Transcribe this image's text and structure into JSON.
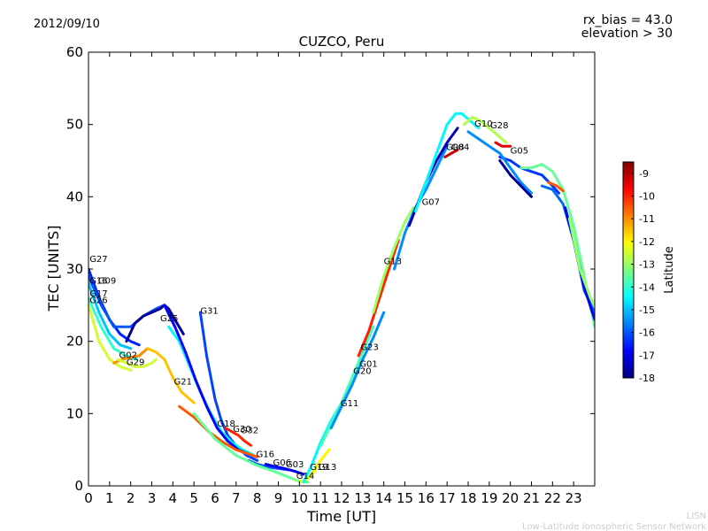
{
  "date_label": "2012/09/10",
  "rx_bias_label": "rx_bias = 43.0",
  "elevation_label": "elevation > 30",
  "footer_line1": "LISN",
  "footer_line2": "Low-Latitude Ionospheric Sensor Network",
  "chart_data": {
    "type": "line",
    "title": "CUZCO, Peru",
    "xlabel": "Time [UT]",
    "ylabel": "TEC [UNITS]",
    "xlim": [
      0,
      24
    ],
    "ylim": [
      0,
      60
    ],
    "xticks": [
      "0",
      "1",
      "2",
      "3",
      "4",
      "5",
      "6",
      "7",
      "8",
      "9",
      "10",
      "11",
      "12",
      "13",
      "14",
      "15",
      "16",
      "17",
      "18",
      "19",
      "20",
      "21",
      "22",
      "23"
    ],
    "yticks": [
      "0",
      "10",
      "20",
      "30",
      "40",
      "50",
      "60"
    ],
    "colorbar": {
      "label": "Latitude",
      "range": [
        -18,
        -8.5
      ],
      "ticks": [
        "-9",
        "-10",
        "-11",
        "-12",
        "-13",
        "-14",
        "-15",
        "-16",
        "-17",
        "-18"
      ],
      "colormap": [
        "#00007f",
        "#0000ff",
        "#007fff",
        "#00ffff",
        "#7fff7f",
        "#ffff00",
        "#ff7f00",
        "#ff0000",
        "#7f0000"
      ]
    },
    "series": [
      {
        "name": "G27",
        "lat": -16.5,
        "label_x": 0.05,
        "label_y": 31.0,
        "x": [
          0.0,
          0.5,
          1.0,
          1.5,
          2.0,
          2.4
        ],
        "y": [
          30.0,
          26.0,
          23.0,
          21.0,
          20.0,
          19.5
        ]
      },
      {
        "name": "G15",
        "lat": -15.0,
        "label_x": 0.05,
        "label_y": 28.0,
        "x": [
          0.0,
          0.5,
          1.0,
          1.5,
          2.0
        ],
        "y": [
          28.0,
          24.0,
          21.0,
          19.5,
          19.0
        ]
      },
      {
        "name": "G09",
        "lat": -16.0,
        "label_x": 0.45,
        "label_y": 28.0,
        "x": [
          0.0,
          0.6,
          1.2,
          2.0,
          2.6,
          3.2,
          3.6,
          4.0
        ],
        "y": [
          29.0,
          25.0,
          22.0,
          22.0,
          23.5,
          24.5,
          25.0,
          23.0
        ]
      },
      {
        "name": "G17",
        "lat": -14.0,
        "label_x": 0.05,
        "label_y": 26.2,
        "x": [
          0.0,
          0.6,
          1.2,
          1.8,
          2.3
        ],
        "y": [
          26.0,
          22.0,
          19.0,
          18.0,
          17.5
        ]
      },
      {
        "name": "G26",
        "lat": -12.5,
        "label_x": 0.05,
        "label_y": 25.3,
        "x": [
          0.0,
          0.5,
          1.0,
          1.5,
          2.0
        ],
        "y": [
          25.0,
          20.0,
          17.5,
          16.5,
          16.0
        ]
      },
      {
        "name": "G02",
        "lat": -11.0,
        "label_x": 1.45,
        "label_y": 17.7,
        "x": [
          1.2,
          1.6,
          2.0,
          2.4,
          2.8
        ],
        "y": [
          17.0,
          17.5,
          17.8,
          18.0,
          19.0
        ]
      },
      {
        "name": "G29",
        "lat": -12.5,
        "label_x": 1.8,
        "label_y": 16.7,
        "x": [
          1.4,
          1.8,
          2.2,
          2.6,
          3.0,
          3.2
        ],
        "y": [
          17.5,
          17.0,
          16.5,
          16.5,
          17.0,
          17.5
        ]
      },
      {
        "name": "G25",
        "lat": -17.8,
        "label_x": 3.4,
        "label_y": 22.8,
        "x": [
          1.8,
          2.2,
          2.6,
          3.0,
          3.4,
          3.6,
          3.8,
          4.1,
          4.5
        ],
        "y": [
          20.0,
          22.5,
          23.5,
          24.0,
          24.5,
          25.0,
          24.5,
          23.0,
          21.0
        ]
      },
      {
        "name": "G21",
        "lat": -11.5,
        "label_x": 4.05,
        "label_y": 14.0,
        "x": [
          2.8,
          3.2,
          3.6,
          4.0,
          4.4,
          4.8,
          5.0
        ],
        "y": [
          19.0,
          18.5,
          17.5,
          15.0,
          13.0,
          12.0,
          11.5
        ]
      },
      {
        "name": "G31",
        "lat": -16.2,
        "label_x": 5.3,
        "label_y": 23.8,
        "x": [
          5.3,
          5.6,
          6.0,
          6.3,
          6.6,
          7.0,
          7.5,
          8.0
        ],
        "y": [
          24.0,
          18.0,
          12.0,
          9.0,
          7.0,
          5.5,
          4.2,
          3.5
        ]
      },
      {
        "name": "G18",
        "lat": -14.5,
        "label_x": 6.1,
        "label_y": 8.2,
        "x": [
          3.8,
          4.3,
          4.8,
          5.3,
          5.8,
          6.3,
          6.8,
          7.3,
          7.8
        ],
        "y": [
          22.0,
          20.0,
          16.5,
          13.0,
          10.0,
          7.5,
          6.0,
          5.0,
          4.3
        ]
      },
      {
        "name": "G30",
        "lat": -16.8,
        "label_x": 6.85,
        "label_y": 7.5,
        "x": [
          3.6,
          4.1,
          4.6,
          5.1,
          5.6,
          6.1,
          6.6,
          7.1,
          7.6
        ],
        "y": [
          25.0,
          22.0,
          18.5,
          14.5,
          11.0,
          8.0,
          6.2,
          5.0,
          4.4
        ]
      },
      {
        "name": "G32",
        "lat": -10.0,
        "label_x": 7.2,
        "label_y": 7.3,
        "x": [
          6.5,
          6.8,
          7.1,
          7.4,
          7.7
        ],
        "y": [
          8.0,
          7.5,
          7.0,
          6.2,
          5.6
        ]
      },
      {
        "name": "G16",
        "lat": -10.5,
        "label_x": 7.95,
        "label_y": 4.0,
        "x": [
          4.3,
          5.0,
          5.7,
          6.4,
          7.0,
          7.6,
          8.0
        ],
        "y": [
          11.0,
          9.5,
          7.5,
          6.0,
          5.0,
          4.4,
          4.0
        ]
      },
      {
        "name": "G06",
        "lat": -16.0,
        "label_x": 8.75,
        "label_y": 2.8,
        "x": [
          7.6,
          8.0,
          8.5,
          9.0,
          9.5
        ],
        "y": [
          3.5,
          3.0,
          2.6,
          2.4,
          2.2
        ]
      },
      {
        "name": "G03",
        "lat": -17.0,
        "label_x": 9.35,
        "label_y": 2.6,
        "x": [
          8.4,
          8.8,
          9.3,
          9.8,
          10.2
        ],
        "y": [
          3.0,
          2.7,
          2.4,
          2.0,
          1.6
        ]
      },
      {
        "name": "G14",
        "lat": -13.5,
        "label_x": 9.85,
        "label_y": 1.0,
        "x": [
          5.0,
          6.0,
          7.0,
          8.0,
          8.8,
          9.5,
          10.0,
          10.4
        ],
        "y": [
          10.0,
          6.5,
          4.2,
          2.8,
          2.0,
          1.2,
          0.6,
          0.5
        ]
      },
      {
        "name": "G19",
        "lat": -13.0,
        "label_x": 10.5,
        "label_y": 2.2,
        "x": [
          9.8,
          10.1,
          10.4,
          10.7,
          11.0
        ],
        "y": [
          0.8,
          0.6,
          1.0,
          2.2,
          3.5
        ]
      },
      {
        "name": "G13",
        "lat": -12.0,
        "label_x": 10.9,
        "label_y": 2.2,
        "x": [
          10.1,
          10.4,
          10.7,
          11.0,
          11.4
        ],
        "y": [
          0.5,
          1.0,
          2.0,
          3.5,
          5.0
        ]
      },
      {
        "name": "G11",
        "lat": -14.5,
        "label_x": 11.95,
        "label_y": 11.0,
        "x": [
          10.2,
          10.6,
          11.0,
          11.5,
          12.0,
          12.5
        ],
        "y": [
          0.5,
          3.0,
          6.0,
          9.0,
          11.5,
          14.0
        ]
      },
      {
        "name": "G20",
        "lat": -13.8,
        "label_x": 12.55,
        "label_y": 15.5,
        "x": [
          11.0,
          11.5,
          12.0,
          12.5,
          13.0,
          13.5
        ],
        "y": [
          5.5,
          8.5,
          11.5,
          15.0,
          18.5,
          22.0
        ]
      },
      {
        "name": "G01",
        "lat": -15.5,
        "label_x": 12.85,
        "label_y": 16.5,
        "x": [
          11.5,
          12.0,
          12.5,
          13.0,
          13.5,
          14.0
        ],
        "y": [
          8.0,
          11.0,
          14.0,
          17.5,
          20.5,
          24.0
        ]
      },
      {
        "name": "G23",
        "lat": -10.0,
        "label_x": 12.9,
        "label_y": 18.8,
        "x": [
          12.8,
          13.3,
          13.8,
          14.3,
          14.7
        ],
        "y": [
          18.0,
          21.5,
          26.0,
          30.5,
          34.0
        ]
      },
      {
        "name": "G13",
        "lat": -13.0,
        "label_x": 14.0,
        "label_y": 30.7,
        "x": [
          13.5,
          14.0,
          14.5,
          15.0,
          15.4
        ],
        "y": [
          24.0,
          29.0,
          33.0,
          36.5,
          38.5
        ]
      },
      {
        "name": "G07",
        "lat": -15.5,
        "label_x": 15.8,
        "label_y": 38.9,
        "x": [
          14.5,
          15.0,
          15.5,
          16.0,
          16.5,
          17.0
        ],
        "y": [
          30.0,
          35.0,
          38.5,
          41.0,
          44.0,
          47.0
        ]
      },
      {
        "name": "G08",
        "lat": -17.5,
        "label_x": 16.95,
        "label_y": 46.5,
        "x": [
          15.2,
          15.6,
          16.0,
          16.5,
          17.0,
          17.5
        ],
        "y": [
          36.0,
          39.0,
          42.0,
          45.0,
          47.5,
          49.5
        ]
      },
      {
        "name": "G04",
        "lat": -9.2,
        "label_x": 17.2,
        "label_y": 46.5,
        "x": [
          16.9,
          17.2,
          17.5
        ],
        "y": [
          45.5,
          46.0,
          46.5
        ]
      },
      {
        "name": "G10",
        "lat": -14.5,
        "label_x": 18.3,
        "label_y": 49.7,
        "x": [
          15.5,
          16.0,
          16.5,
          17.0,
          17.4,
          17.7,
          18.1,
          18.5
        ],
        "y": [
          38.0,
          42.0,
          46.0,
          50.0,
          51.5,
          51.5,
          50.5,
          49.5
        ]
      },
      {
        "name": "G28",
        "lat": -12.8,
        "label_x": 19.05,
        "label_y": 49.5,
        "x": [
          17.8,
          18.2,
          18.6,
          19.0,
          19.4,
          19.8
        ],
        "y": [
          50.0,
          51.0,
          50.5,
          49.5,
          48.5,
          47.5
        ]
      },
      {
        "name": "G05",
        "lat": -16.3,
        "label_x": 20.0,
        "label_y": 46.0,
        "x": [
          19.5,
          20.0,
          20.5,
          21.0,
          21.5,
          22.0,
          22.3
        ],
        "y": [
          45.5,
          45.0,
          44.0,
          43.5,
          43.0,
          41.5,
          40.5
        ]
      },
      {
        "name": "",
        "lat": -15.5,
        "label_x": 0,
        "label_y": 0,
        "x": [
          18.0,
          18.5,
          19.0,
          19.5,
          20.0,
          20.5,
          21.0
        ],
        "y": [
          49.0,
          48.0,
          47.0,
          46.0,
          44.0,
          42.0,
          40.5
        ]
      },
      {
        "name": "",
        "lat": -17.8,
        "label_x": 0,
        "label_y": 0,
        "x": [
          19.5,
          20.0,
          20.5,
          21.0
        ],
        "y": [
          45.0,
          43.0,
          41.5,
          40.0
        ]
      },
      {
        "name": "",
        "lat": -9.5,
        "label_x": 0,
        "label_y": 0,
        "x": [
          19.3,
          19.6,
          20.0
        ],
        "y": [
          47.5,
          47.0,
          47.0
        ]
      },
      {
        "name": "",
        "lat": -13.5,
        "label_x": 0,
        "label_y": 0,
        "x": [
          20.5,
          21.0,
          21.5,
          22.0,
          22.5,
          23.0,
          23.5,
          24.0
        ],
        "y": [
          44.0,
          44.0,
          44.5,
          43.5,
          41.0,
          36.0,
          29.0,
          22.0
        ]
      },
      {
        "name": "",
        "lat": -15.8,
        "label_x": 0,
        "label_y": 0,
        "x": [
          21.5,
          22.0,
          22.5,
          23.0,
          23.5,
          24.0
        ],
        "y": [
          41.5,
          41.0,
          39.0,
          34.0,
          27.0,
          24.0
        ]
      },
      {
        "name": "",
        "lat": -10.5,
        "label_x": 0,
        "label_y": 0,
        "x": [
          21.8,
          22.2,
          22.5
        ],
        "y": [
          42.0,
          41.5,
          40.8
        ]
      },
      {
        "name": "",
        "lat": -17.0,
        "label_x": 0,
        "label_y": 0,
        "x": [
          22.6,
          23.0,
          23.5,
          24.0
        ],
        "y": [
          38.5,
          34.0,
          27.5,
          23.0
        ]
      },
      {
        "name": "",
        "lat": -13.0,
        "label_x": 0,
        "label_y": 0,
        "x": [
          22.8,
          23.3,
          23.8,
          24.0
        ],
        "y": [
          37.0,
          30.0,
          26.0,
          25.0
        ]
      }
    ]
  }
}
